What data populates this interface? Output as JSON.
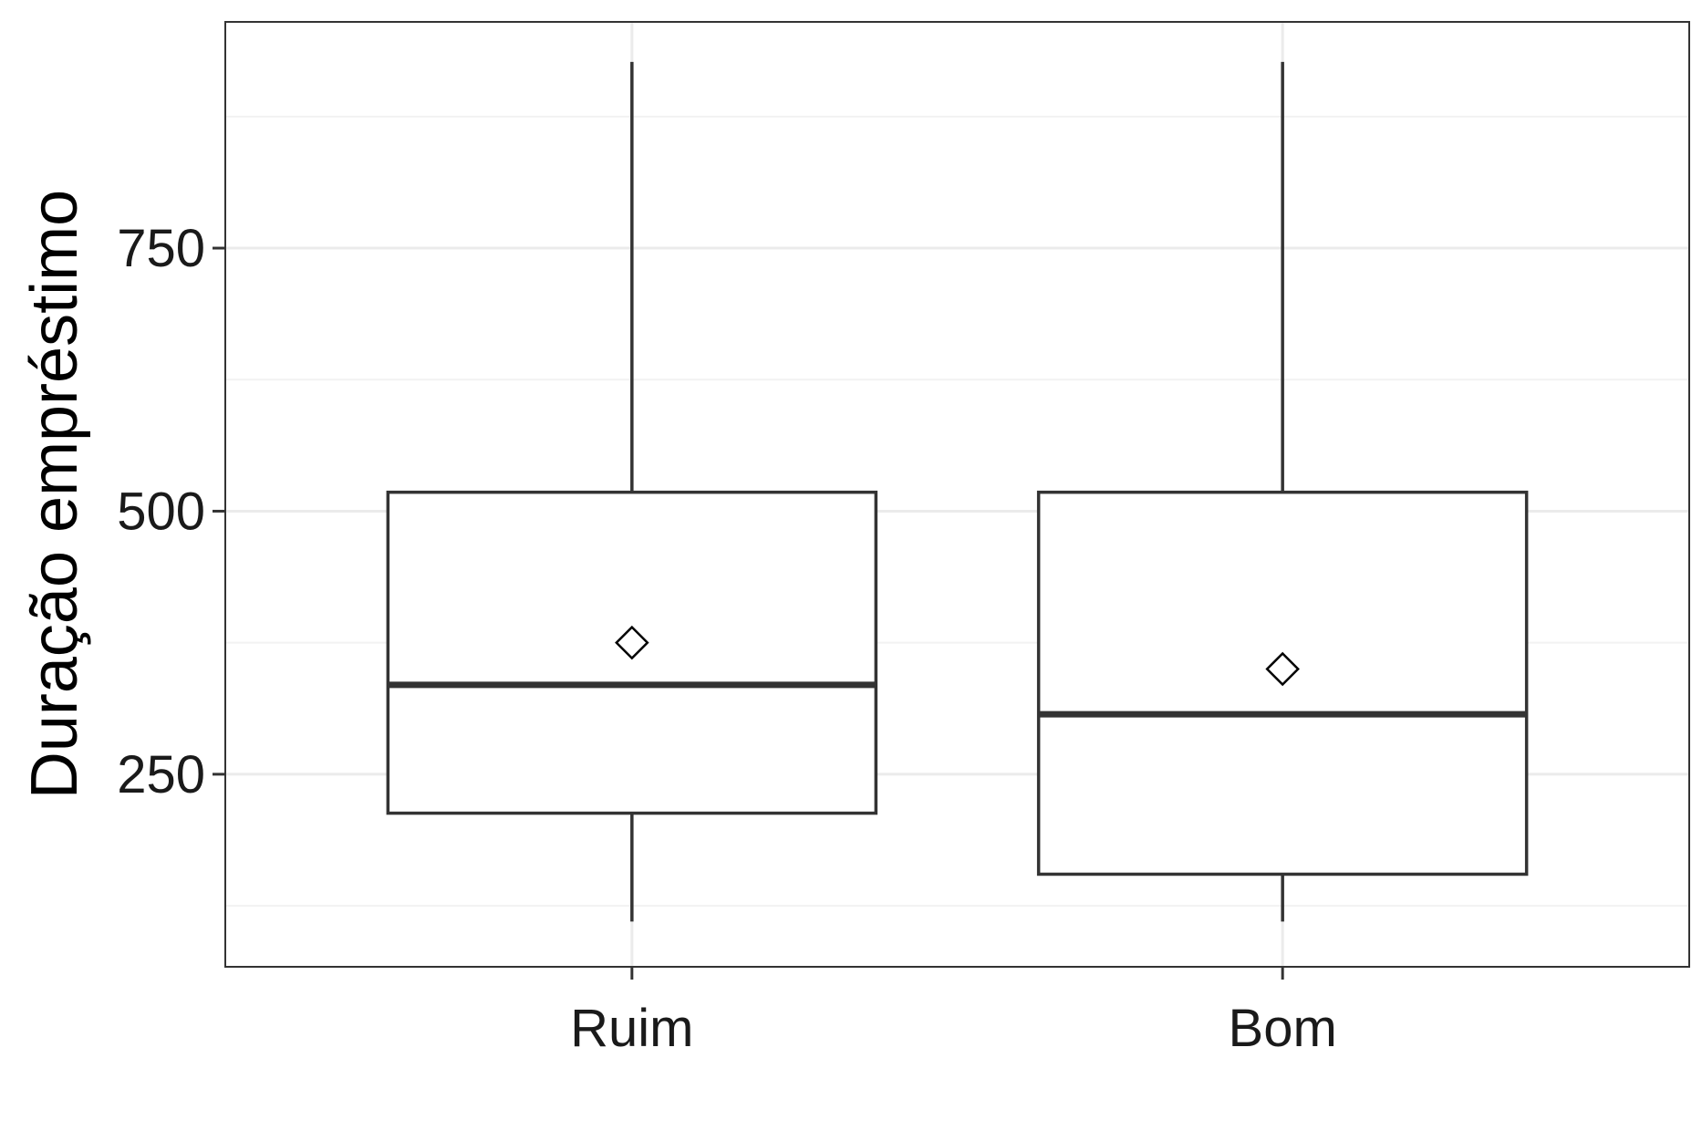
{
  "chart_data": {
    "type": "boxplot",
    "title": "",
    "xlabel": "",
    "ylabel": "Duração empréstimo",
    "categories": [
      "Ruim",
      "Bom"
    ],
    "ylim": [
      67,
      965
    ],
    "yticks": [
      250,
      500,
      750
    ],
    "grid": true,
    "boxes": [
      {
        "category": "Ruim",
        "min": 110,
        "q1": 213,
        "median": 335,
        "q3": 518,
        "max": 927,
        "mean": 375
      },
      {
        "category": "Bom",
        "min": 110,
        "q1": 155,
        "median": 307,
        "q3": 518,
        "max": 927,
        "mean": 350
      }
    ]
  },
  "colors": {
    "box_stroke": "#333333",
    "grid_major": "#ebebeb",
    "grid_minor": "#f2f2f2",
    "panel_border": "#333333",
    "background": "#ffffff"
  }
}
